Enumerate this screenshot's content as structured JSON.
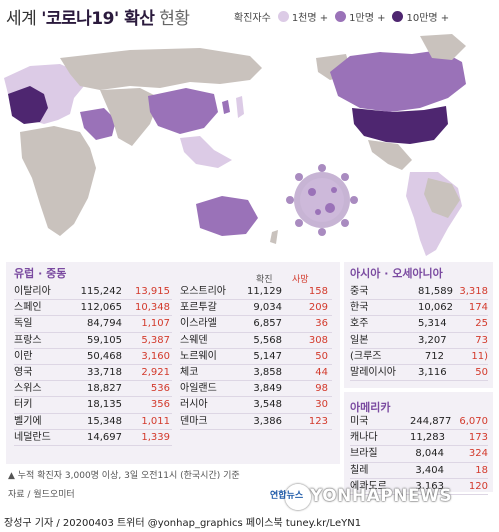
{
  "title": {
    "prefix": "세계 ",
    "highlight": "'코로나19' 확산",
    "suffix": " 현황"
  },
  "legend": {
    "label": "확진자수",
    "items": [
      {
        "label": "1천명 +",
        "color": "#dccbe6"
      },
      {
        "label": "1만명 +",
        "color": "#9a72b8"
      },
      {
        "label": "10만명 +",
        "color": "#4e2670"
      }
    ]
  },
  "colors": {
    "land": "#c9c2bd",
    "ocean": "#ffffff",
    "accent": "#7a4aa0",
    "death": "#d33a2c"
  },
  "europe": {
    "title": "유럽 · 중동",
    "header_confirmed": "확진",
    "header_deaths": "사망",
    "col1": [
      {
        "name": "이탈리아",
        "confirmed": "115,242",
        "deaths": "13,915"
      },
      {
        "name": "스페인",
        "confirmed": "112,065",
        "deaths": "10,348"
      },
      {
        "name": "독일",
        "confirmed": "84,794",
        "deaths": "1,107"
      },
      {
        "name": "프랑스",
        "confirmed": "59,105",
        "deaths": "5,387"
      },
      {
        "name": "이란",
        "confirmed": "50,468",
        "deaths": "3,160"
      },
      {
        "name": "영국",
        "confirmed": "33,718",
        "deaths": "2,921"
      },
      {
        "name": "스위스",
        "confirmed": "18,827",
        "deaths": "536"
      },
      {
        "name": "터키",
        "confirmed": "18,135",
        "deaths": "356"
      },
      {
        "name": "벨기에",
        "confirmed": "15,348",
        "deaths": "1,011"
      },
      {
        "name": "네덜란드",
        "confirmed": "14,697",
        "deaths": "1,339"
      }
    ],
    "col2": [
      {
        "name": "오스트리아",
        "confirmed": "11,129",
        "deaths": "158"
      },
      {
        "name": "포르투갈",
        "confirmed": "9,034",
        "deaths": "209"
      },
      {
        "name": "이스라엘",
        "confirmed": "6,857",
        "deaths": "36"
      },
      {
        "name": "스웨덴",
        "confirmed": "5,568",
        "deaths": "308"
      },
      {
        "name": "노르웨이",
        "confirmed": "5,147",
        "deaths": "50"
      },
      {
        "name": "체코",
        "confirmed": "3,858",
        "deaths": "44"
      },
      {
        "name": "아일랜드",
        "confirmed": "3,849",
        "deaths": "98"
      },
      {
        "name": "러시아",
        "confirmed": "3,548",
        "deaths": "30"
      },
      {
        "name": "덴마크",
        "confirmed": "3,386",
        "deaths": "123"
      }
    ]
  },
  "asia": {
    "title": "아시아 · 오세아니아",
    "rows": [
      {
        "name": "중국",
        "confirmed": "81,589",
        "deaths": "3,318"
      },
      {
        "name": "한국",
        "confirmed": "10,062",
        "deaths": "174"
      },
      {
        "name": "호주",
        "confirmed": "5,314",
        "deaths": "25"
      },
      {
        "name": "일본",
        "confirmed": "3,207",
        "deaths": "73"
      },
      {
        "name": "(크루즈",
        "confirmed": "712",
        "deaths": "11)"
      },
      {
        "name": "말레이시아",
        "confirmed": "3,116",
        "deaths": "50"
      }
    ]
  },
  "america": {
    "title": "아메리카",
    "rows": [
      {
        "name": "미국",
        "confirmed": "244,877",
        "deaths": "6,070"
      },
      {
        "name": "캐나다",
        "confirmed": "11,283",
        "deaths": "173"
      },
      {
        "name": "브라질",
        "confirmed": "8,044",
        "deaths": "324"
      },
      {
        "name": "칠레",
        "confirmed": "3,404",
        "deaths": "18"
      },
      {
        "name": "에콰도르",
        "confirmed": "3,163",
        "deaths": "120"
      }
    ]
  },
  "note": "▲ 누적 확진자 3,000명 이상, 3일 오전11시 (한국시간) 기준",
  "source": "자료 / 월드오미터",
  "watermark": "YONHAPNEWS",
  "watermark_small": "연합뉴스",
  "footer": "장성구 기자 / 20200403  트위터 @yonhap_graphics  페이스북 tuney.kr/LeYN1"
}
